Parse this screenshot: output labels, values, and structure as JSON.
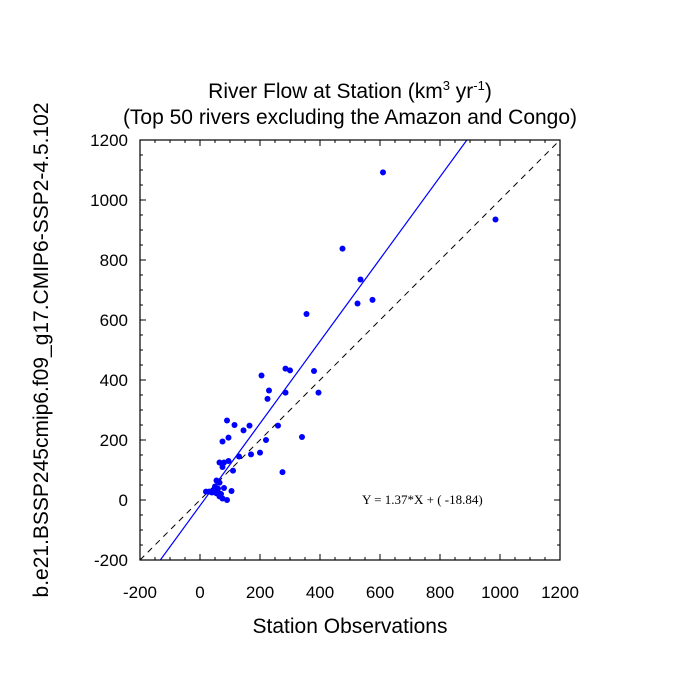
{
  "chart_data": {
    "type": "scatter",
    "title_line1_prefix": "River Flow at Station (km",
    "title_line1_sup1": "3",
    "title_line1_mid": " yr",
    "title_line1_sup2": "-1",
    "title_line1_suffix": ")",
    "title_line2": "(Top 50 rivers excluding the Amazon and Congo)",
    "xlabel": "Station Observations",
    "ylabel": "b.e21.BSSP245cmip6.f09_g17.CMIP6-SSP2-4.5.102",
    "xlim": [
      -200,
      1200
    ],
    "ylim": [
      -200,
      1200
    ],
    "x_ticks": [
      "-200",
      "0",
      "200",
      "400",
      "600",
      "800",
      "1000",
      "1200"
    ],
    "y_ticks": [
      "-200",
      "0",
      "200",
      "400",
      "600",
      "800",
      "1000",
      "1200"
    ],
    "fit_label": "Y =  1.37*X + (  -18.84)",
    "fit": {
      "slope": 1.37,
      "intercept": -18.84
    },
    "reference_line": "1:1 dashed",
    "point_color": "#0000ff",
    "fit_color": "#0000ff",
    "points": [
      [
        985,
        935
      ],
      [
        610,
        1092
      ],
      [
        475,
        838
      ],
      [
        535,
        735
      ],
      [
        575,
        667
      ],
      [
        525,
        655
      ],
      [
        355,
        620
      ],
      [
        285,
        438
      ],
      [
        300,
        432
      ],
      [
        380,
        430
      ],
      [
        205,
        415
      ],
      [
        395,
        358
      ],
      [
        285,
        358
      ],
      [
        230,
        365
      ],
      [
        225,
        337
      ],
      [
        90,
        265
      ],
      [
        115,
        250
      ],
      [
        165,
        248
      ],
      [
        260,
        248
      ],
      [
        145,
        232
      ],
      [
        75,
        195
      ],
      [
        95,
        208
      ],
      [
        220,
        200
      ],
      [
        340,
        210
      ],
      [
        200,
        158
      ],
      [
        170,
        152
      ],
      [
        130,
        145
      ],
      [
        65,
        125
      ],
      [
        80,
        125
      ],
      [
        95,
        130
      ],
      [
        75,
        110
      ],
      [
        110,
        98
      ],
      [
        275,
        93
      ],
      [
        55,
        65
      ],
      [
        65,
        58
      ],
      [
        50,
        45
      ],
      [
        60,
        38
      ],
      [
        55,
        22
      ],
      [
        70,
        20
      ],
      [
        105,
        30
      ],
      [
        35,
        28
      ],
      [
        20,
        28
      ],
      [
        40,
        25
      ],
      [
        75,
        5
      ],
      [
        90,
        0
      ],
      [
        60,
        25
      ],
      [
        80,
        40
      ],
      [
        45,
        30
      ],
      [
        65,
        12
      ],
      [
        30,
        28
      ]
    ]
  }
}
